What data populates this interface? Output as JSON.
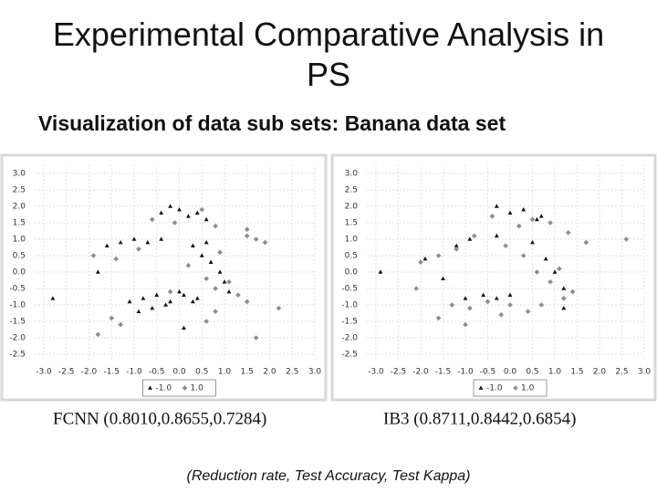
{
  "title": "Experimental Comparative Analysis in PS",
  "subtitle": "Visualization of data sub sets: Banana data set",
  "footnote": "(Reduction rate, Test Accuracy, Test Kappa)",
  "chart_data": [
    {
      "type": "scatter",
      "caption": "FCNN (0.8010,0.8655,0.7284)",
      "xlim": [
        -3.0,
        3.0
      ],
      "ylim": [
        -2.5,
        3.0
      ],
      "grid": true,
      "xticks": [
        {
          "value": -3,
          "label": "-3.0"
        },
        {
          "value": -2.5,
          "label": "-2.5"
        },
        {
          "value": -2,
          "label": "-2.0"
        },
        -1.5,
        {
          "value": -1,
          "label": "-1.0"
        },
        -0.5,
        {
          "value": 0,
          "label": "0.0"
        },
        0.5,
        {
          "value": 1,
          "label": "1.0"
        },
        1.5,
        {
          "value": 2,
          "label": "2.0"
        },
        2.5,
        {
          "value": 3,
          "label": "3.0"
        }
      ],
      "yticks": [
        {
          "value": 3,
          "label": "3.0"
        },
        2.5,
        {
          "value": 2,
          "label": "2.0"
        },
        1.5,
        {
          "value": 1,
          "label": "1.0"
        },
        0.5,
        {
          "value": 0,
          "label": "0.0"
        },
        -0.5,
        {
          "value": -1,
          "label": "-1.0"
        },
        -1.5,
        {
          "value": -2,
          "label": "-2.0"
        },
        -2.5
      ],
      "series": [
        {
          "name": "-1.0",
          "color": "#111111",
          "marker": "triangle",
          "x": [
            -0.4,
            -0.2,
            0,
            0.2,
            0.4,
            0.6,
            -1.6,
            -1.3,
            -1,
            -0.7,
            -0.4,
            -1.1,
            -0.8,
            -0.5,
            -0.2,
            0.1,
            0.4,
            0.3,
            0.5,
            0.7,
            0.9,
            1.0,
            1.1,
            0.6,
            -0.9,
            -0.6,
            -0.3,
            0,
            0.3,
            -2.8,
            -1.8,
            0.1
          ],
          "values": [
            1.8,
            2.0,
            1.9,
            1.7,
            1.8,
            1.6,
            0.8,
            0.9,
            1.0,
            0.9,
            1.0,
            -0.9,
            -0.8,
            -0.7,
            -0.9,
            -0.7,
            -0.8,
            0.8,
            0.5,
            0.3,
            0.0,
            -0.3,
            -0.6,
            0.9,
            -1.2,
            -1.1,
            -1.0,
            -0.6,
            -0.9,
            -0.8,
            0.0,
            -1.7
          ]
        },
        {
          "name": "1.0",
          "color": "#8c8c8c",
          "marker": "diamond",
          "x": [
            -0.6,
            -0.1,
            0.5,
            0.8,
            1.5,
            1.7,
            1.9,
            -1.9,
            -1.4,
            -0.9,
            0.2,
            0.6,
            0.8,
            1.1,
            1.3,
            1.5,
            -1.5,
            -1.3,
            0.6,
            0.8,
            -1.8,
            1.7,
            2.2,
            1.5,
            0.9,
            -0.2
          ],
          "values": [
            1.6,
            1.5,
            1.9,
            1.4,
            1.1,
            1.0,
            0.9,
            0.5,
            0.4,
            0.7,
            0.2,
            -0.2,
            -0.5,
            -0.3,
            -0.7,
            -0.9,
            -1.4,
            -1.6,
            -1.5,
            -1.2,
            -1.9,
            -2.0,
            -1.1,
            1.3,
            0.6,
            -0.6
          ]
        }
      ]
    },
    {
      "type": "scatter",
      "caption": "IB3 (0.8711,0.8442,0.6854)",
      "xlim": [
        -3.0,
        3.0
      ],
      "ylim": [
        -2.5,
        3.0
      ],
      "grid": true,
      "xticks": [
        {
          "value": -3,
          "label": "-3.0"
        },
        {
          "value": -2.5,
          "label": "-2.5"
        },
        {
          "value": -2,
          "label": "-2.0"
        },
        -1.5,
        {
          "value": -1,
          "label": "-1.0"
        },
        -0.5,
        {
          "value": 0,
          "label": "0.0"
        },
        0.5,
        {
          "value": 1,
          "label": "1.0"
        },
        1.5,
        {
          "value": 2,
          "label": "2.0"
        },
        2.5,
        {
          "value": 3,
          "label": "3.0"
        }
      ],
      "yticks": [
        {
          "value": 3,
          "label": "3.0"
        },
        2.5,
        {
          "value": 2,
          "label": "2.0"
        },
        1.5,
        {
          "value": 1,
          "label": "1.0"
        },
        0.5,
        {
          "value": 0,
          "label": "0.0"
        },
        -0.5,
        {
          "value": -1,
          "label": "-1.0"
        },
        -1.5,
        {
          "value": -2,
          "label": "-2.0"
        },
        -2.5
      ],
      "series": [
        {
          "name": "-1.0",
          "color": "#111111",
          "marker": "triangle",
          "x": [
            -0.3,
            0,
            0.3,
            0.6,
            -1.2,
            -0.9,
            -1.0,
            -0.6,
            -0.3,
            0,
            0.8,
            1.0,
            1.2,
            0.5,
            -2.9,
            -0.3,
            1.2,
            -1.9,
            0.7,
            -1.5
          ],
          "values": [
            2.0,
            1.8,
            1.9,
            1.6,
            0.8,
            1.0,
            -0.8,
            -0.7,
            -0.8,
            -0.7,
            0.4,
            0.0,
            -0.5,
            0.9,
            0.0,
            1.1,
            -1.1,
            0.4,
            1.7,
            -0.2
          ]
        },
        {
          "name": "1.0",
          "color": "#8c8c8c",
          "marker": "diamond",
          "x": [
            -0.4,
            0.2,
            0.5,
            0.9,
            1.3,
            1.7,
            2.6,
            -2.0,
            -1.6,
            -1.2,
            -0.8,
            -0.1,
            0.3,
            0.6,
            0.9,
            1.1,
            1.4,
            -1.3,
            -0.9,
            -0.5,
            0,
            0.4,
            -1.6,
            -1.0,
            -0.2,
            0.7,
            1.2,
            -2.1
          ],
          "values": [
            1.7,
            1.4,
            1.6,
            1.5,
            1.2,
            0.9,
            1.0,
            0.3,
            0.5,
            0.7,
            1.1,
            0.8,
            0.5,
            0.0,
            -0.3,
            0.1,
            -0.6,
            -1.0,
            -1.1,
            -0.9,
            -1.0,
            -1.2,
            -1.4,
            -1.6,
            -1.3,
            -1.0,
            -0.8,
            -0.5
          ]
        }
      ]
    }
  ]
}
